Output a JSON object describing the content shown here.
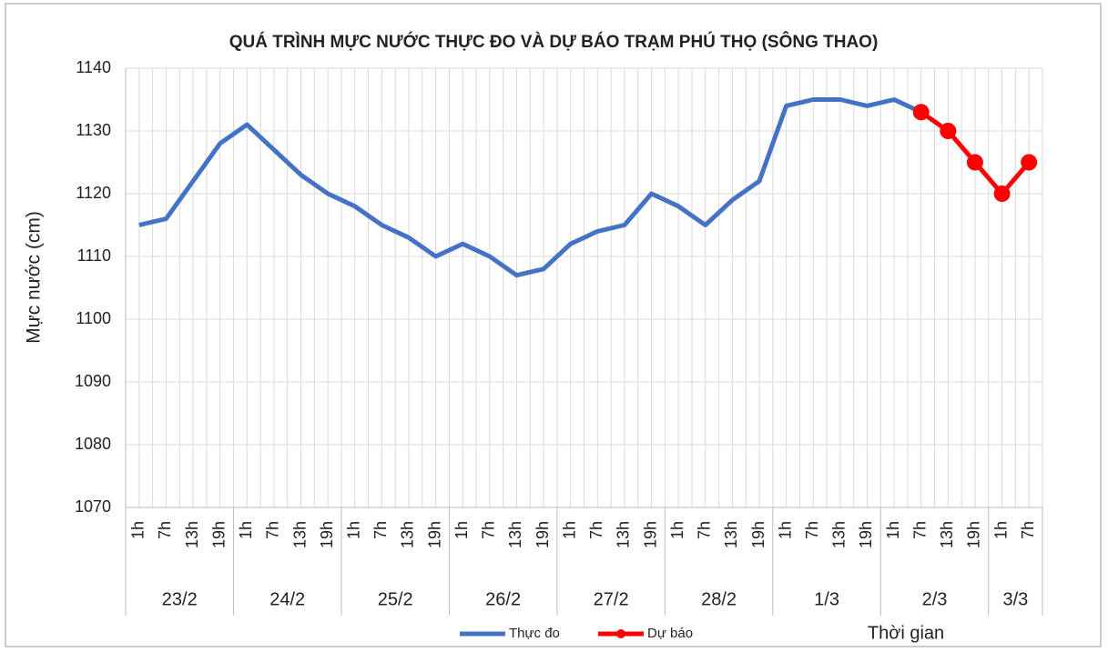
{
  "chart_data": {
    "type": "line",
    "title": "QUÁ TRÌNH MỰC NƯỚC THỰC ĐO VÀ DỰ BÁO TRẠM PHÚ THỌ (SÔNG THAO)",
    "y_label": "Mực nước (cm)",
    "x_label": "Thời gian",
    "categories": [
      "1h",
      "7h",
      "13h",
      "19h",
      "1h",
      "7h",
      "13h",
      "19h",
      "1h",
      "7h",
      "13h",
      "19h",
      "1h",
      "7h",
      "13h",
      "19h",
      "1h",
      "7h",
      "13h",
      "19h",
      "1h",
      "7h",
      "13h",
      "19h",
      "1h",
      "7h",
      "13h",
      "19h",
      "1h",
      "7h",
      "13h",
      "19h",
      "1h",
      "7h"
    ],
    "category_groups": [
      "23/2",
      "23/2",
      "23/2",
      "23/2",
      "24/2",
      "24/2",
      "24/2",
      "24/2",
      "25/2",
      "25/2",
      "25/2",
      "25/2",
      "26/2",
      "26/2",
      "26/2",
      "26/2",
      "27/2",
      "27/2",
      "27/2",
      "27/2",
      "28/2",
      "28/2",
      "28/2",
      "28/2",
      "1/3",
      "1/3",
      "1/3",
      "1/3",
      "2/3",
      "2/3",
      "2/3",
      "2/3",
      "3/3",
      "3/3"
    ],
    "series": [
      {
        "name": "Thực đo",
        "color": "#4472c4",
        "marker": false,
        "values": [
          1115,
          1116,
          1122,
          1128,
          1131,
          1127,
          1123,
          1120,
          1118,
          1115,
          1113,
          1110,
          1112,
          1110,
          1107,
          1108,
          1112,
          1114,
          1115,
          1120,
          1118,
          1115,
          1119,
          1122,
          1134,
          1135,
          1135,
          1134,
          1135,
          1133,
          null,
          null,
          null,
          null
        ]
      },
      {
        "name": "Dự báo",
        "color": "#ff0000",
        "marker": true,
        "values": [
          null,
          null,
          null,
          null,
          null,
          null,
          null,
          null,
          null,
          null,
          null,
          null,
          null,
          null,
          null,
          null,
          null,
          null,
          null,
          null,
          null,
          null,
          null,
          null,
          null,
          null,
          null,
          null,
          null,
          1133,
          1130,
          1125,
          1120,
          1125
        ]
      }
    ],
    "ylim": [
      1070,
      1140
    ],
    "yticks": [
      1070,
      1080,
      1090,
      1100,
      1110,
      1120,
      1130,
      1140
    ],
    "grid": true,
    "legend": "bottom"
  }
}
